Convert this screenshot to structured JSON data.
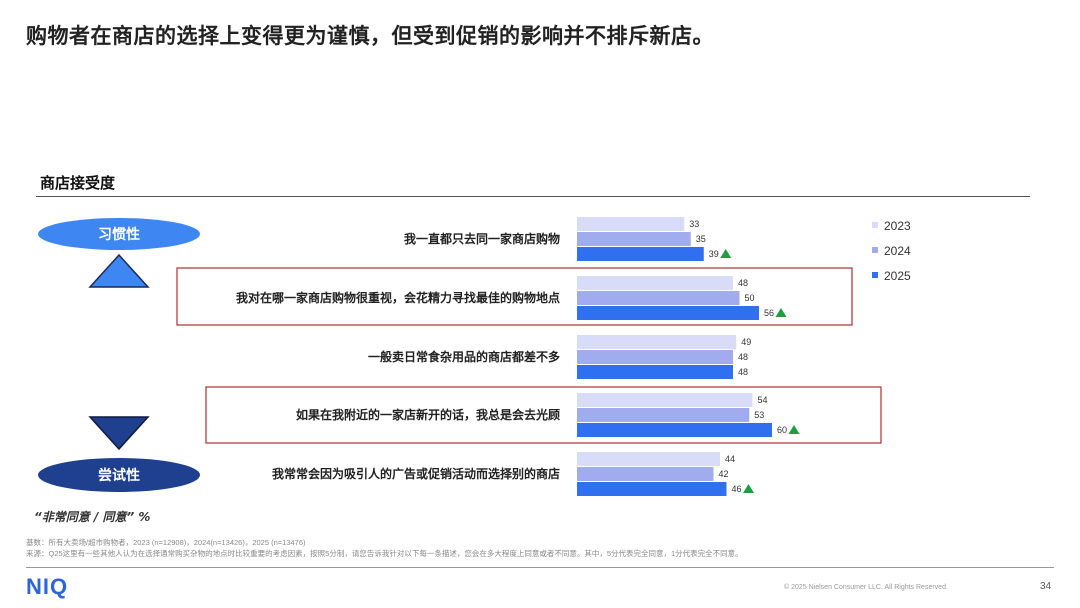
{
  "page": {
    "title": "购物者在商店的选择上变得更为谨慎，但受到促销的影响并不排斥新店。",
    "subtitle": "商店接受度",
    "pill_top": "习惯性",
    "pill_bottom": "尝试性",
    "note": "“非常同意 / 同意” %",
    "footnote_1": "基数：所有大卖场/超市购物者，2023 (n=12908)，2024(n=13426)，2025 (n=13476)",
    "footnote_2": "来源：Q25这里有一些其他人认为在选择通常购买杂物的地点时比较重要的考虑因素，按照5分制，请您告诉我针对以下每一条描述，您会在多大程度上同意或者不同意。其中，5分代表完全同意，1分代表完全不同意。",
    "logo": "NIQ",
    "copyright": "© 2025 Nielsen Consumer LLC. All Rights Reserved.",
    "page_number": "34",
    "colors": {
      "2023": "#d9dcf8",
      "2024": "#a0acee",
      "2025": "#2f6ff0",
      "up_arrow": "#1f9d3f",
      "highlight_box": "#b03030",
      "pill_top": "#3e86f2",
      "pill_bottom": "#1f3f8f"
    }
  },
  "chart_data": {
    "type": "bar",
    "orientation": "horizontal",
    "title": "商店接受度",
    "categories": [
      "我一直都只去同一家商店购物",
      "我对在哪一家商店购物很重视，会花精力寻找最佳的购物地点",
      "一般卖日常食杂用品的商店都差不多",
      "如果在我附近的一家店新开的话，我总是会去光顾",
      "我常常会因为吸引人的广告或促销活动而选择别的商店"
    ],
    "series": [
      {
        "name": "2023",
        "values": [
          33,
          48,
          49,
          54,
          44
        ]
      },
      {
        "name": "2024",
        "values": [
          35,
          50,
          48,
          53,
          42
        ]
      },
      {
        "name": "2025",
        "values": [
          39,
          56,
          48,
          60,
          46
        ]
      }
    ],
    "increase_marker_2025": [
      true,
      true,
      false,
      true,
      true
    ],
    "highlighted_categories": [
      1,
      3
    ],
    "legend_position": "top-right",
    "xlim": [
      0,
      100
    ],
    "grid": false
  }
}
